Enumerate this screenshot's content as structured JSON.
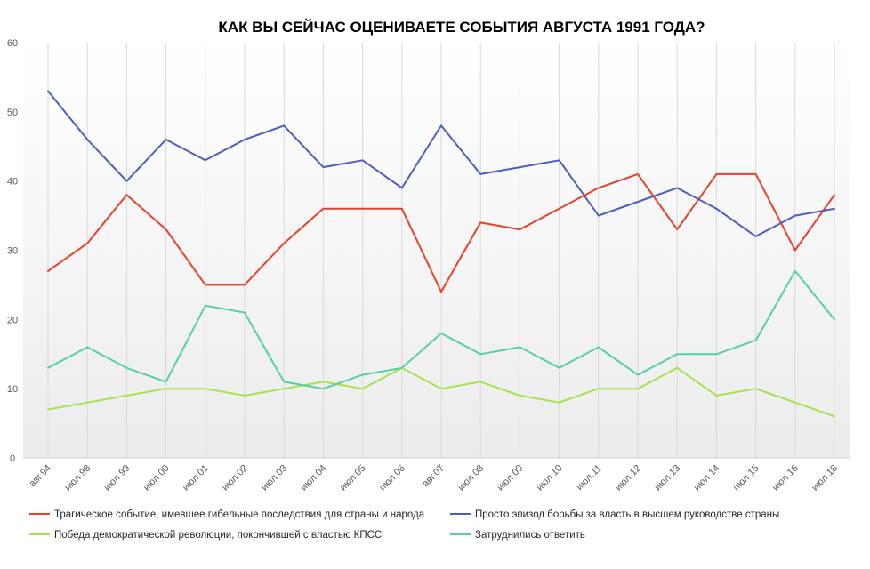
{
  "chart_data": {
    "type": "line",
    "title": "КАК ВЫ СЕЙЧАС ОЦЕНИВАЕТЕ СОБЫТИЯ АВГУСТА 1991 ГОДА?",
    "xlabel": "",
    "ylabel": "",
    "ylim": [
      0,
      60
    ],
    "yticks": [
      0,
      10,
      20,
      30,
      40,
      50,
      60
    ],
    "grid": "vertical",
    "legend_position": "bottom",
    "categories": [
      "авг.94",
      "июл.98",
      "июл.99",
      "июл.00",
      "июл.01",
      "июл.02",
      "июл.03",
      "июл.04",
      "июл.05",
      "июл.06",
      "авг.07",
      "июл.08",
      "июл.09",
      "июл.10",
      "июл.11",
      "июл.12",
      "июл.13",
      "июл.14",
      "июл.15",
      "июл.16",
      "июл.18"
    ],
    "series": [
      {
        "name": "Трагическое событие, имевшее гибельные последствия для страны и народа",
        "color": "#e8402a",
        "values": [
          27,
          31,
          38,
          33,
          25,
          25,
          31,
          36,
          36,
          36,
          24,
          34,
          33,
          36,
          39,
          41,
          33,
          41,
          41,
          30,
          38
        ]
      },
      {
        "name": "Просто эпизод борьбы за власть в высшем руководстве страны",
        "color": "#4a5ebd",
        "values": [
          53,
          46,
          40,
          46,
          43,
          46,
          48,
          42,
          43,
          39,
          48,
          41,
          42,
          43,
          35,
          37,
          39,
          36,
          32,
          35,
          36
        ]
      },
      {
        "name": "Победа демократической революции, покончившей с властью КПСС",
        "color": "#a6e24c",
        "values": [
          7,
          8,
          9,
          10,
          10,
          9,
          10,
          11,
          10,
          13,
          10,
          11,
          9,
          8,
          10,
          10,
          13,
          9,
          10,
          8,
          6
        ]
      },
      {
        "name": "Затруднились ответить",
        "color": "#52d1a6",
        "values": [
          13,
          16,
          13,
          11,
          22,
          21,
          11,
          10,
          12,
          13,
          18,
          15,
          16,
          13,
          16,
          12,
          15,
          15,
          17,
          27,
          20
        ]
      }
    ]
  }
}
